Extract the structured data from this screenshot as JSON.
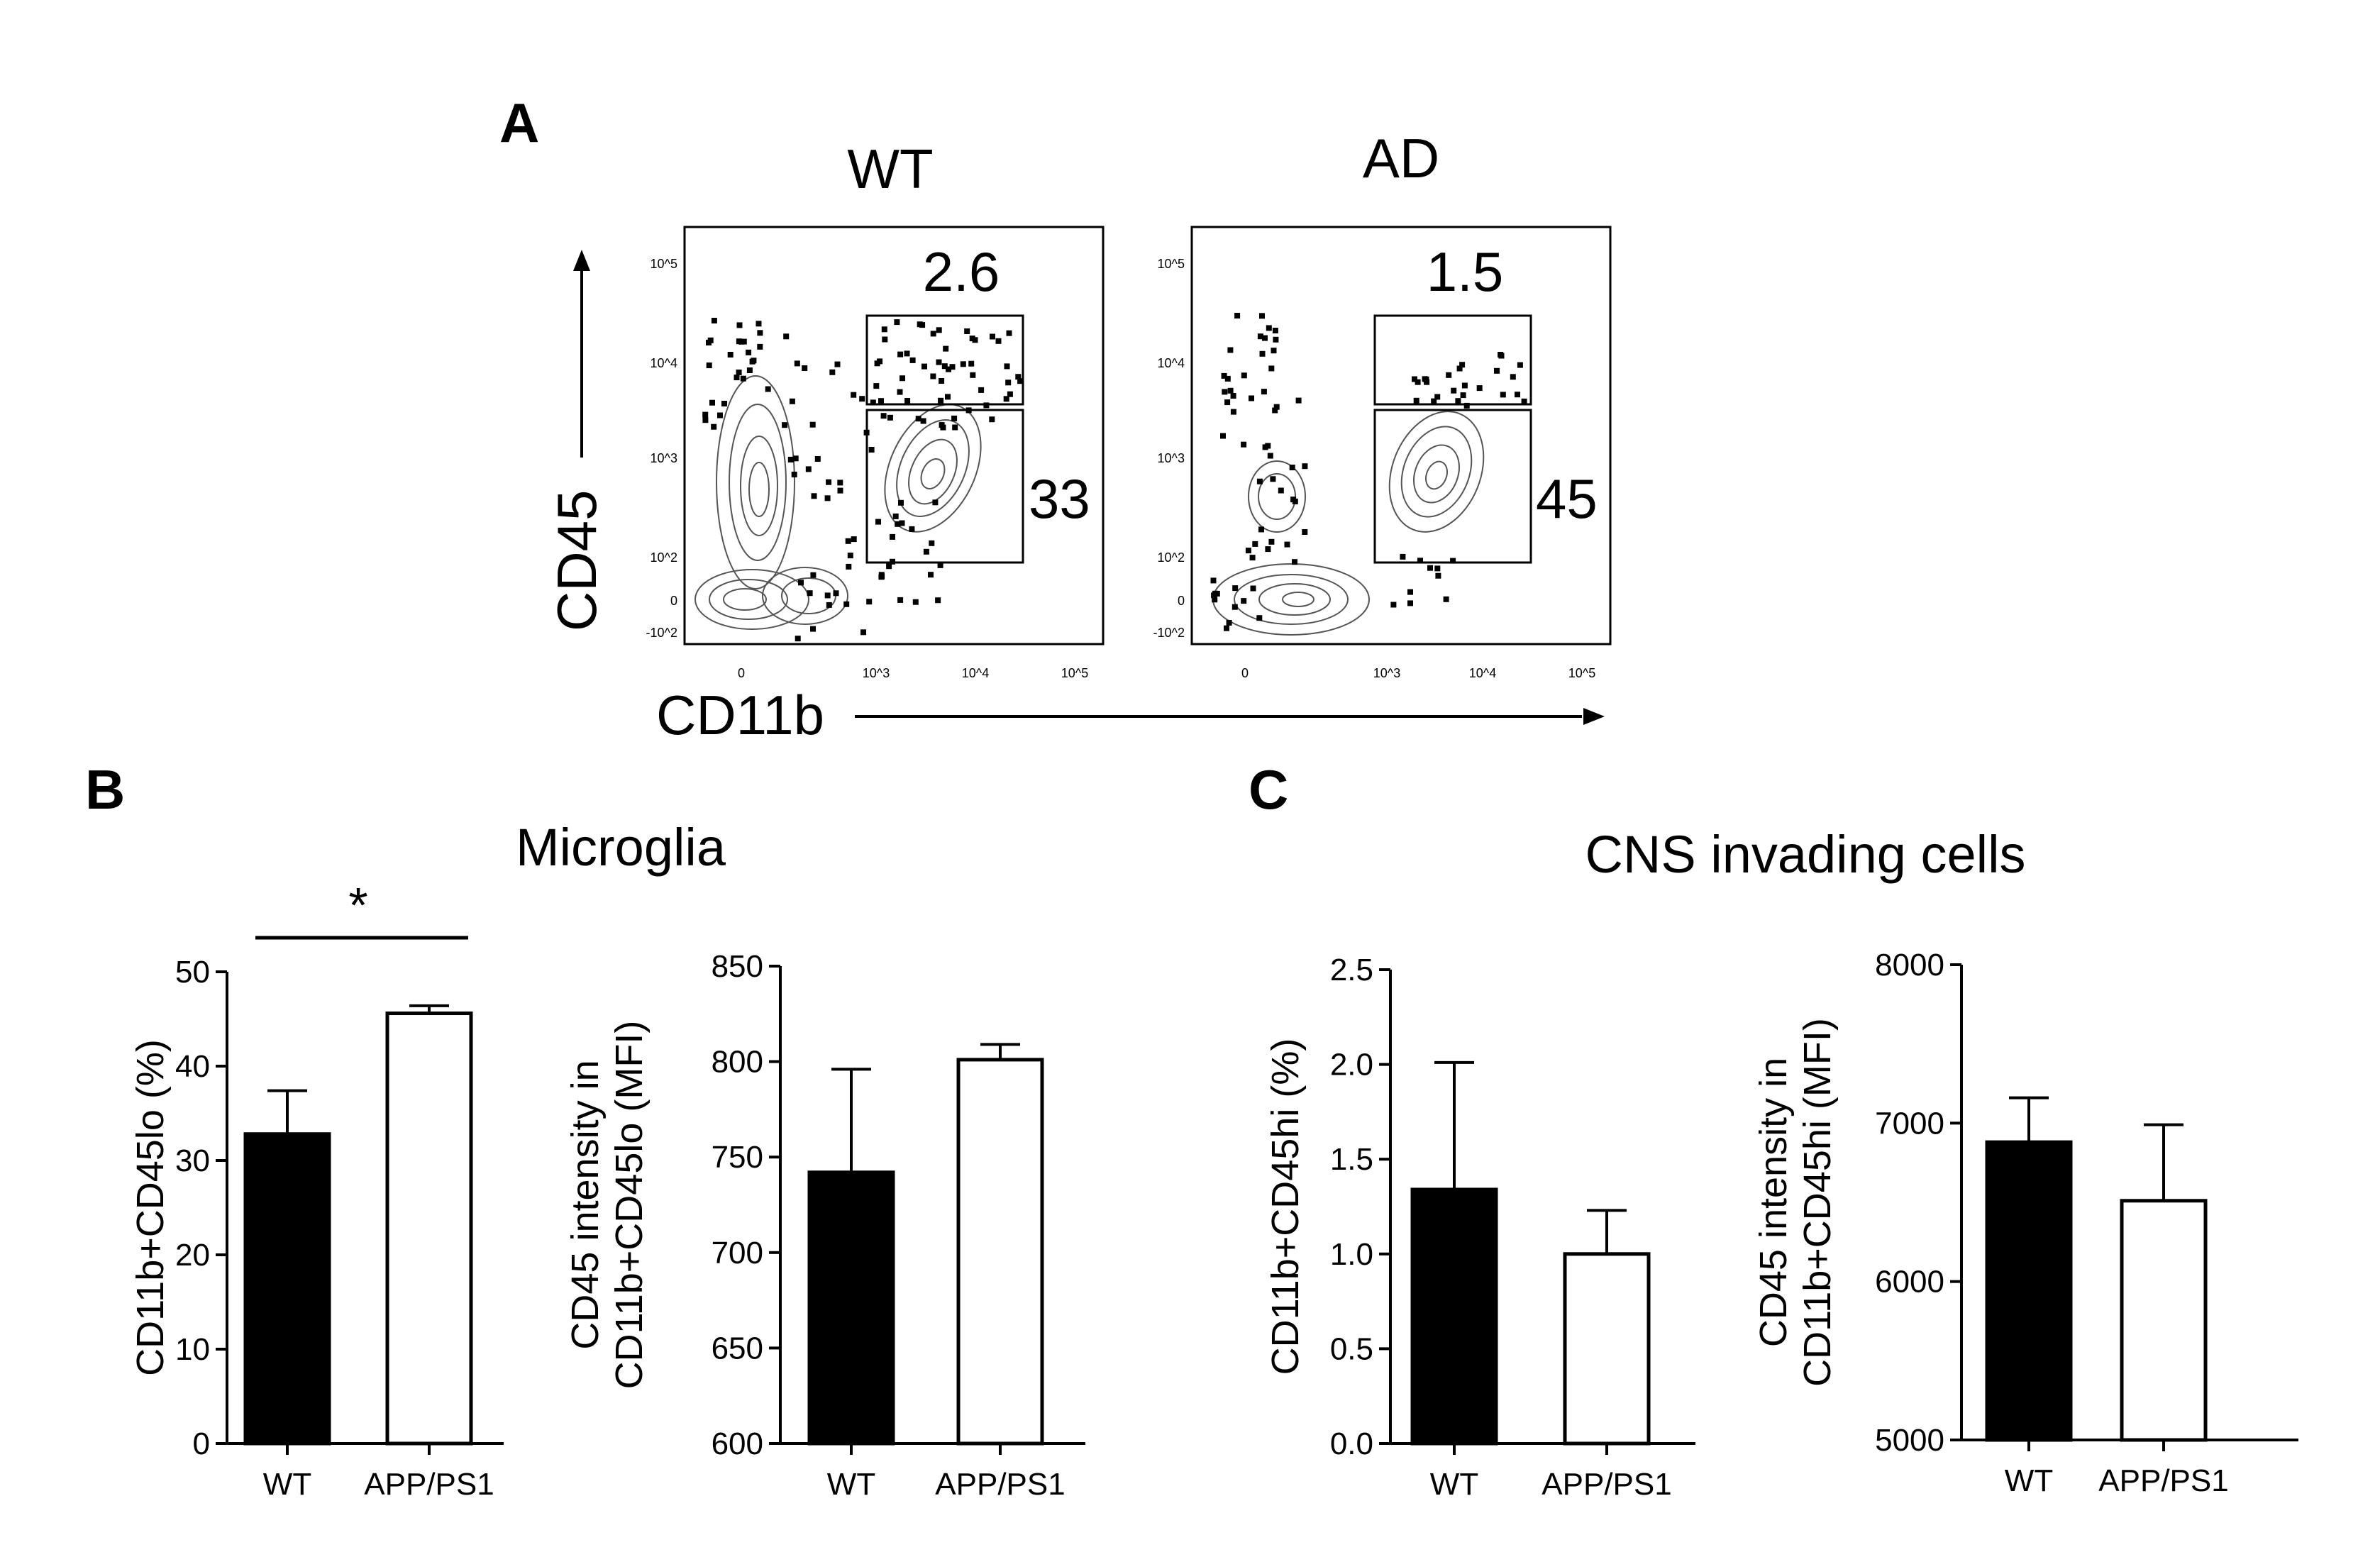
{
  "panels": {
    "A": {
      "letter": "A",
      "plots": [
        {
          "title": "WT",
          "gate_hi": "2.6",
          "gate_lo": "33"
        },
        {
          "title": "AD",
          "gate_hi": "1.5",
          "gate_lo": "45"
        }
      ],
      "x_axis": "CD11b",
      "y_axis": "CD45",
      "y_ticks": [
        "10^5",
        "10^4",
        "10^3",
        "10^2",
        "0",
        "-10^2"
      ],
      "x_ticks": [
        "0",
        "10^3",
        "10^4",
        "10^5"
      ]
    },
    "B": {
      "letter": "B",
      "title": "Microglia"
    },
    "C": {
      "letter": "C",
      "title": "CNS invading cells"
    }
  },
  "chart_data": [
    {
      "type": "bar",
      "panel": "B",
      "title": "Microglia",
      "categories": [
        "WT",
        "APP/PS1"
      ],
      "values": [
        32.8,
        45.6
      ],
      "errors": [
        4.6,
        0.8
      ],
      "bar_fill": [
        "#000000",
        "#ffffff"
      ],
      "ylabel_lines": [
        "CD11b+CD45lo (%)"
      ],
      "ylim": [
        0,
        50
      ],
      "yticks": [
        0,
        10,
        20,
        30,
        40,
        50
      ],
      "ytick_labels": [
        "0",
        "10",
        "20",
        "30",
        "40",
        "50"
      ],
      "significance": "*"
    },
    {
      "type": "bar",
      "panel": "B",
      "categories": [
        "WT",
        "APP/PS1"
      ],
      "values": [
        742,
        801
      ],
      "errors": [
        54,
        8
      ],
      "bar_fill": [
        "#000000",
        "#ffffff"
      ],
      "ylabel_lines": [
        "CD45 intensity in",
        "CD11b+CD45lo (MFI)"
      ],
      "ylim": [
        600,
        850
      ],
      "yticks": [
        600,
        650,
        700,
        750,
        800,
        850
      ],
      "ytick_labels": [
        "600",
        "650",
        "700",
        "750",
        "800",
        "850"
      ]
    },
    {
      "type": "bar",
      "panel": "C",
      "title": "CNS invading cells",
      "categories": [
        "WT",
        "APP/PS1"
      ],
      "values": [
        1.34,
        1.0
      ],
      "errors": [
        0.67,
        0.23
      ],
      "bar_fill": [
        "#000000",
        "#ffffff"
      ],
      "ylabel_lines": [
        "CD11b+CD45hi (%)"
      ],
      "ylim": [
        0,
        2.5
      ],
      "yticks": [
        0,
        0.5,
        1.0,
        1.5,
        2.0,
        2.5
      ],
      "ytick_labels": [
        "0.0",
        "0.5",
        "1.0",
        "1.5",
        "2.0",
        "2.5"
      ]
    },
    {
      "type": "bar",
      "panel": "C",
      "categories": [
        "WT",
        "APP/PS1"
      ],
      "values": [
        6880,
        6510
      ],
      "errors": [
        280,
        480
      ],
      "bar_fill": [
        "#000000",
        "#ffffff"
      ],
      "ylabel_lines": [
        "CD45 intensity in",
        "CD11b+CD45hi (MFI)"
      ],
      "ylim": [
        5000,
        8000
      ],
      "yticks": [
        5000,
        6000,
        7000,
        8000
      ],
      "ytick_labels": [
        "5000",
        "6000",
        "7000",
        "8000"
      ]
    }
  ]
}
